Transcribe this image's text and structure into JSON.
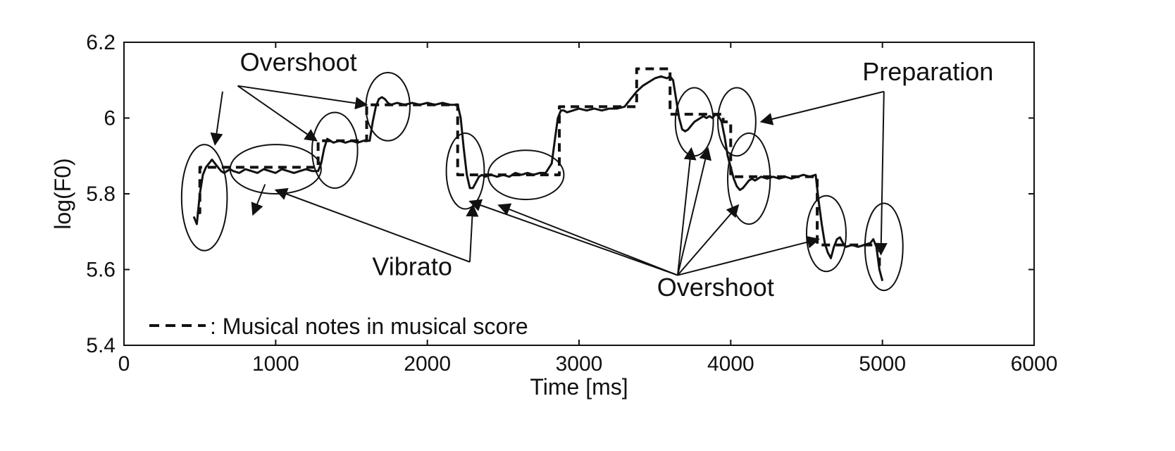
{
  "chart_data": {
    "type": "line",
    "title": "",
    "xlabel": "Time [ms]",
    "ylabel": "log(F0)",
    "xlim": [
      0,
      6000
    ],
    "ylim": [
      5.4,
      6.2
    ],
    "x_ticks": [
      0,
      1000,
      2000,
      3000,
      4000,
      5000,
      6000
    ],
    "x_tick_labels": [
      "0",
      "1000",
      "2000",
      "3000",
      "4000",
      "5000",
      "6000"
    ],
    "y_ticks": [
      5.4,
      5.6,
      5.8,
      6.0,
      6.2
    ],
    "y_tick_labels": [
      "5.4",
      "5.6",
      "5.8",
      "6",
      "6.2"
    ],
    "grid": false,
    "series": [
      {
        "name": "",
        "style": "solid",
        "x": [
          460,
          480,
          500,
          520,
          540,
          560,
          580,
          600,
          620,
          640,
          660,
          680,
          700,
          720,
          760,
          800,
          840,
          880,
          920,
          960,
          1000,
          1040,
          1080,
          1120,
          1160,
          1200,
          1240,
          1280,
          1300,
          1320,
          1340,
          1360,
          1380,
          1420,
          1460,
          1500,
          1540,
          1580,
          1620,
          1640,
          1660,
          1680,
          1700,
          1720,
          1740,
          1760,
          1800,
          1850,
          1900,
          1950,
          2000,
          2050,
          2100,
          2150,
          2200,
          2220,
          2240,
          2260,
          2280,
          2300,
          2320,
          2340,
          2360,
          2380,
          2420,
          2460,
          2500,
          2540,
          2580,
          2620,
          2660,
          2700,
          2740,
          2780,
          2820,
          2840,
          2860,
          2880,
          2900,
          2920,
          2960,
          3000,
          3050,
          3100,
          3150,
          3200,
          3250,
          3300,
          3340,
          3380,
          3420,
          3460,
          3500,
          3540,
          3580,
          3600,
          3620,
          3640,
          3660,
          3680,
          3700,
          3720,
          3740,
          3760,
          3780,
          3800,
          3820,
          3840,
          3860,
          3880,
          3900,
          3920,
          3940,
          3960,
          3980,
          4000,
          4020,
          4040,
          4060,
          4080,
          4100,
          4120,
          4140,
          4160,
          4180,
          4200,
          4240,
          4280,
          4320,
          4360,
          4400,
          4440,
          4480,
          4520,
          4560,
          4580,
          4600,
          4620,
          4640,
          4660,
          4680,
          4700,
          4720,
          4740,
          4760,
          4800,
          4840,
          4880,
          4920,
          4940,
          4960,
          4980,
          5000
        ],
        "y": [
          5.74,
          5.72,
          5.8,
          5.85,
          5.87,
          5.88,
          5.89,
          5.88,
          5.87,
          5.86,
          5.855,
          5.86,
          5.865,
          5.86,
          5.855,
          5.865,
          5.86,
          5.855,
          5.865,
          5.86,
          5.855,
          5.865,
          5.86,
          5.855,
          5.86,
          5.865,
          5.86,
          5.86,
          5.88,
          5.92,
          5.945,
          5.94,
          5.935,
          5.94,
          5.935,
          5.94,
          5.935,
          5.94,
          5.94,
          5.99,
          6.03,
          6.05,
          6.055,
          6.05,
          6.04,
          6.035,
          6.04,
          6.035,
          6.04,
          6.035,
          6.04,
          6.035,
          6.04,
          6.035,
          6.035,
          6.0,
          5.92,
          5.85,
          5.815,
          5.815,
          5.83,
          5.845,
          5.85,
          5.845,
          5.85,
          5.845,
          5.85,
          5.845,
          5.855,
          5.85,
          5.855,
          5.85,
          5.855,
          5.855,
          5.88,
          5.94,
          6.0,
          6.02,
          6.02,
          6.015,
          6.02,
          6.025,
          6.02,
          6.025,
          6.02,
          6.025,
          6.025,
          6.03,
          6.05,
          6.07,
          6.085,
          6.095,
          6.105,
          6.11,
          6.105,
          6.11,
          6.1,
          6.05,
          6.0,
          5.97,
          5.965,
          5.97,
          5.98,
          5.99,
          5.995,
          6.0,
          6.005,
          6.0,
          6.005,
          6.0,
          6.01,
          6.005,
          5.99,
          5.95,
          5.9,
          5.87,
          5.84,
          5.82,
          5.81,
          5.815,
          5.825,
          5.835,
          5.84,
          5.835,
          5.84,
          5.845,
          5.84,
          5.845,
          5.84,
          5.845,
          5.84,
          5.845,
          5.85,
          5.845,
          5.85,
          5.78,
          5.72,
          5.67,
          5.645,
          5.63,
          5.66,
          5.68,
          5.685,
          5.67,
          5.66,
          5.665,
          5.66,
          5.665,
          5.67,
          5.68,
          5.66,
          5.6,
          5.57
        ]
      },
      {
        "name": "Musical notes in musical score",
        "style": "dashed",
        "x": [
          480,
          500,
          500,
          1280,
          1280,
          1600,
          1600,
          2200,
          2200,
          2870,
          2870,
          3380,
          3380,
          3600,
          3600,
          3950,
          3950,
          4000,
          4000,
          4570,
          4570,
          4980,
          4980
        ],
        "y": [
          5.75,
          5.75,
          5.87,
          5.87,
          5.94,
          5.94,
          6.035,
          6.035,
          5.85,
          5.85,
          6.03,
          6.03,
          6.13,
          6.13,
          6.01,
          6.01,
          5.99,
          5.99,
          5.845,
          5.845,
          5.665,
          5.665,
          5.6
        ]
      }
    ],
    "legend": {
      "position": "bottom-left",
      "label": ": Musical notes in musical score"
    },
    "annotations": [
      {
        "text": "Overshoot",
        "label_x": 1150,
        "label_y": 6.125
      },
      {
        "text": "Vibrato",
        "label_x": 1900,
        "label_y": 5.585
      },
      {
        "text": "Overshoot",
        "label_x": 3900,
        "label_y": 5.53
      },
      {
        "text": "Preparation",
        "label_x": 5300,
        "label_y": 6.1
      }
    ],
    "highlight_ellipses": [
      {
        "cx": 530,
        "cy": 5.79,
        "rx": 150,
        "ry": 0.14
      },
      {
        "cx": 1000,
        "cy": 5.865,
        "rx": 300,
        "ry": 0.065
      },
      {
        "cx": 1390,
        "cy": 5.915,
        "rx": 150,
        "ry": 0.1
      },
      {
        "cx": 1740,
        "cy": 6.03,
        "rx": 145,
        "ry": 0.09
      },
      {
        "cx": 2250,
        "cy": 5.86,
        "rx": 125,
        "ry": 0.1
      },
      {
        "cx": 2650,
        "cy": 5.85,
        "rx": 250,
        "ry": 0.065
      },
      {
        "cx": 3760,
        "cy": 5.99,
        "rx": 125,
        "ry": 0.09
      },
      {
        "cx": 4040,
        "cy": 5.99,
        "rx": 125,
        "ry": 0.09
      },
      {
        "cx": 4120,
        "cy": 5.84,
        "rx": 140,
        "ry": 0.12
      },
      {
        "cx": 4630,
        "cy": 5.695,
        "rx": 130,
        "ry": 0.1
      },
      {
        "cx": 5010,
        "cy": 5.66,
        "rx": 125,
        "ry": 0.115
      }
    ],
    "arrows": [
      {
        "from": [
          650,
          6.07
        ],
        "to": [
          600,
          5.93
        ]
      },
      {
        "from": [
          750,
          6.085
        ],
        "to": [
          1270,
          5.94
        ]
      },
      {
        "from": [
          750,
          6.085
        ],
        "to": [
          1600,
          6.035
        ]
      },
      {
        "from": [
          930,
          5.825
        ],
        "to": [
          850,
          5.745
        ]
      },
      {
        "from": [
          2280,
          5.62
        ],
        "to": [
          1000,
          5.81
        ]
      },
      {
        "from": [
          2280,
          5.62
        ],
        "to": [
          2300,
          5.77
        ]
      },
      {
        "from": [
          3650,
          5.585
        ],
        "to": [
          2280,
          5.78
        ]
      },
      {
        "from": [
          3650,
          5.585
        ],
        "to": [
          2470,
          5.77
        ]
      },
      {
        "from": [
          3650,
          5.585
        ],
        "to": [
          3740,
          5.92
        ]
      },
      {
        "from": [
          3650,
          5.585
        ],
        "to": [
          3850,
          5.92
        ]
      },
      {
        "from": [
          3650,
          5.585
        ],
        "to": [
          4050,
          5.77
        ]
      },
      {
        "from": [
          3650,
          5.585
        ],
        "to": [
          4580,
          5.68
        ]
      },
      {
        "from": [
          5010,
          6.07
        ],
        "to": [
          4200,
          5.99
        ]
      },
      {
        "from": [
          5010,
          6.07
        ],
        "to": [
          4990,
          5.64
        ]
      }
    ]
  }
}
